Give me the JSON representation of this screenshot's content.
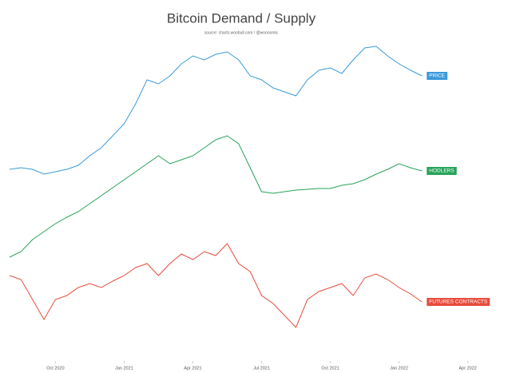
{
  "chart_data": {
    "type": "line",
    "title": "Bitcoin Demand / Supply",
    "subtitle": "source: charts.woobull.com / @woonomic",
    "x": [
      -2,
      -1.5,
      -1,
      -0.5,
      0,
      0.5,
      1,
      1.5,
      2,
      2.5,
      3,
      3.5,
      4,
      4.5,
      5,
      5.5,
      6,
      6.5,
      7,
      7.5,
      8,
      8.5,
      9,
      9.5,
      10,
      10.5,
      11,
      11.5,
      12,
      12.5,
      13,
      13.5,
      14,
      14.5,
      15,
      15.5,
      16
    ],
    "xlim": [
      -2,
      18.5
    ],
    "xticks": [
      {
        "value": 0,
        "label": "Oct 2020"
      },
      {
        "value": 3,
        "label": "Jan 2021"
      },
      {
        "value": 6,
        "label": "Apr 2021"
      },
      {
        "value": 9,
        "label": "Jul 2021"
      },
      {
        "value": 12,
        "label": "Oct 2021"
      },
      {
        "value": 15,
        "label": "Jan 2022"
      },
      {
        "value": 18,
        "label": "Apr 2022"
      }
    ],
    "ylim": [
      0,
      100
    ],
    "series": [
      {
        "name": "PRICE",
        "color": "#3a9ad9",
        "values": [
          57,
          57.5,
          57,
          55.5,
          56.25,
          57,
          58.25,
          61.25,
          63.75,
          67.5,
          71.25,
          77.5,
          85,
          83.75,
          86.25,
          90,
          92.5,
          91.25,
          93,
          93.75,
          91.25,
          86.25,
          85,
          82.5,
          81.25,
          80,
          85,
          88,
          88.75,
          87,
          91.25,
          95,
          95.5,
          92.5,
          90,
          88,
          86.25
        ]
      },
      {
        "name": "HODLERS",
        "color": "#27a35a",
        "values": [
          29.5,
          31.25,
          35,
          37.5,
          40,
          42,
          43.75,
          46.25,
          48.75,
          51.25,
          53.75,
          56.25,
          58.75,
          61.25,
          58.75,
          60,
          61.25,
          63.75,
          66.25,
          67.5,
          65,
          57.5,
          50,
          49.5,
          50,
          50.5,
          50.75,
          51,
          51,
          52,
          52.5,
          53.75,
          55.5,
          57,
          58.75,
          57.5,
          56.5
        ]
      },
      {
        "name": "FUTURES CONTRACTS",
        "color": "#e74c3c",
        "values": [
          23.75,
          22.5,
          16.25,
          10,
          16.25,
          17.5,
          20,
          21.25,
          20,
          22,
          23.75,
          26.25,
          27.5,
          23.75,
          27.5,
          30.5,
          28.75,
          31.25,
          30,
          33.75,
          27.5,
          25,
          17.5,
          15,
          11.25,
          7.5,
          16.25,
          18.75,
          20,
          21.25,
          17.5,
          23,
          24.25,
          22.5,
          20,
          18,
          15.5
        ]
      }
    ]
  }
}
